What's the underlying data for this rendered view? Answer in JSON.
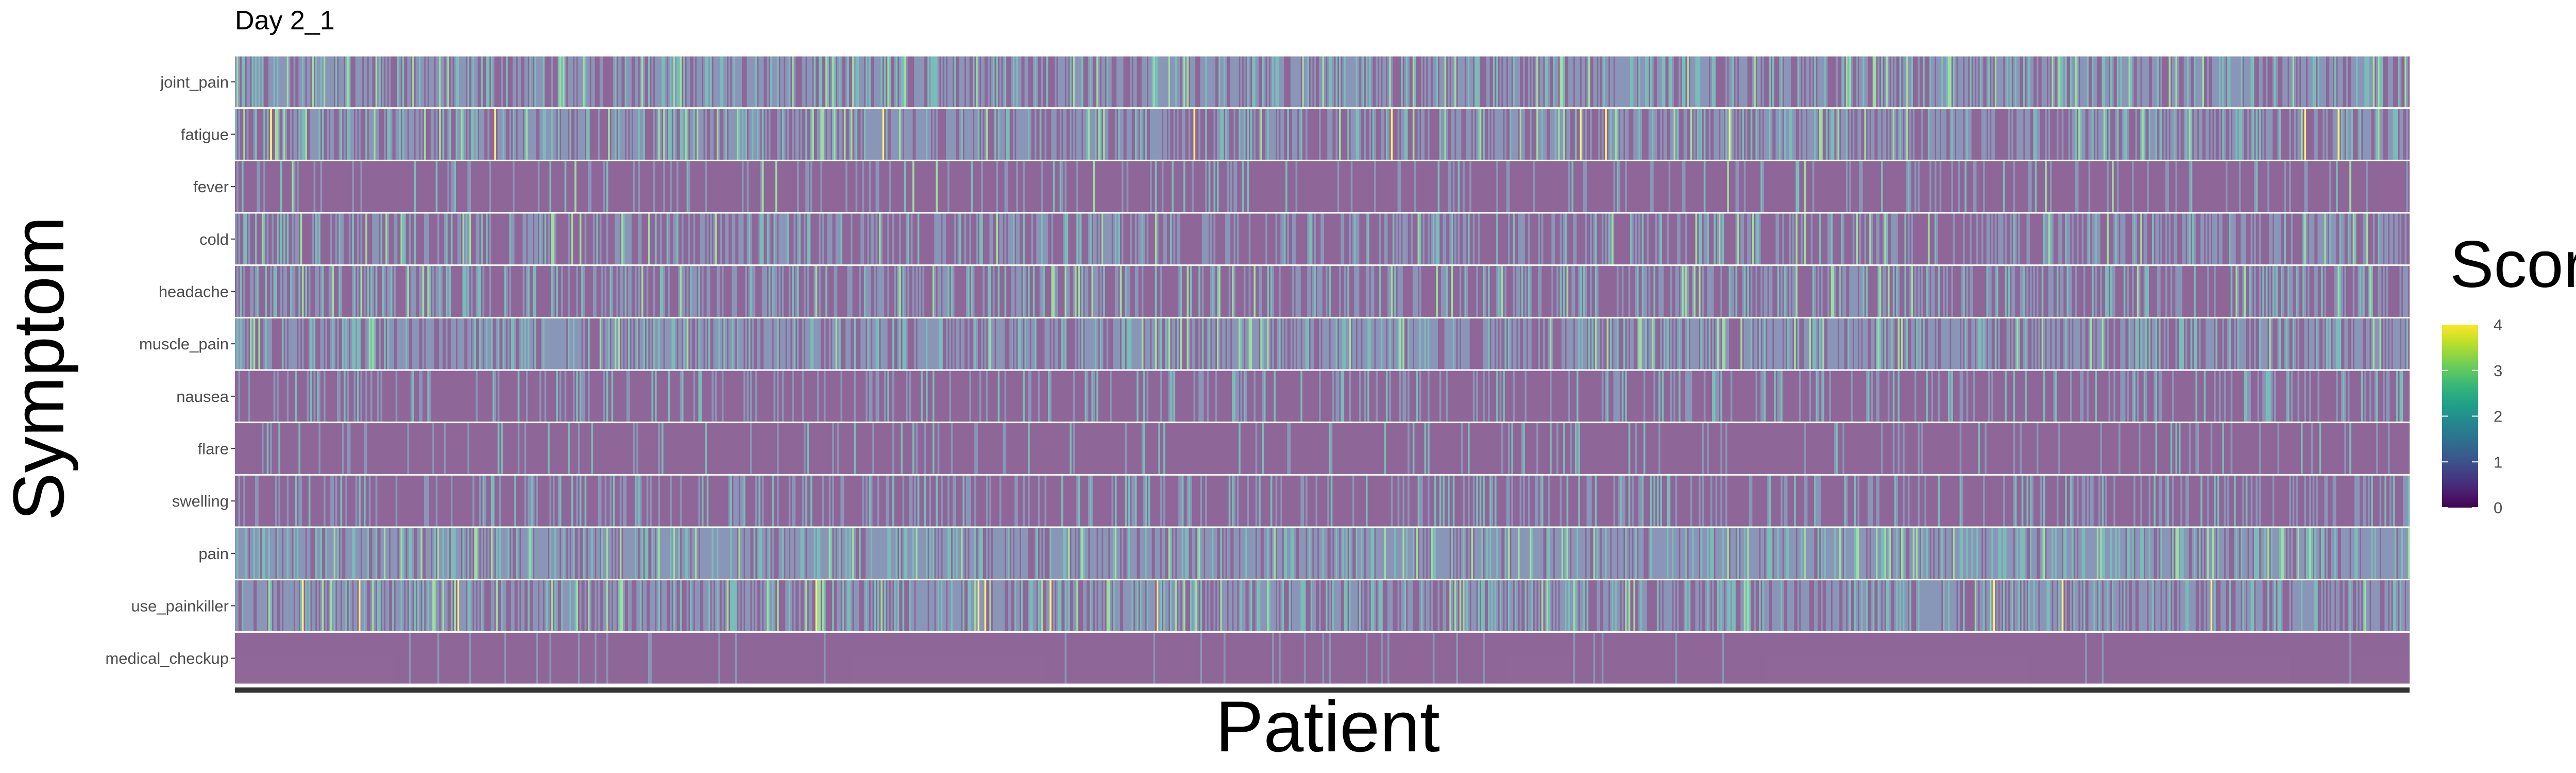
{
  "chart_data": {
    "type": "heatmap",
    "title": "Day 2_1",
    "xlabel": "Patient",
    "ylabel": "Symptom",
    "rows": [
      "joint_pain",
      "fatigue",
      "fever",
      "cold",
      "headache",
      "muscle_pain",
      "nausea",
      "flare",
      "swelling",
      "pain",
      "use_painkiller",
      "medical_checkup"
    ],
    "legend": {
      "title": "Score",
      "ticks": [
        0,
        1,
        2,
        3,
        4
      ],
      "range": [
        0,
        4
      ],
      "colormap": "viridis",
      "placement": "right"
    },
    "x_tick_labels": "none",
    "n_patients": "approx 1300",
    "row_score_profile": [
      {
        "row": "joint_pain",
        "mean_score": 0.9,
        "max_score": 3
      },
      {
        "row": "fatigue",
        "mean_score": 0.8,
        "max_score": 4
      },
      {
        "row": "fever",
        "mean_score": 0.2,
        "max_score": 4
      },
      {
        "row": "cold",
        "mean_score": 0.6,
        "max_score": 3
      },
      {
        "row": "headache",
        "mean_score": 0.6,
        "max_score": 3
      },
      {
        "row": "muscle_pain",
        "mean_score": 0.9,
        "max_score": 3
      },
      {
        "row": "nausea",
        "mean_score": 0.3,
        "max_score": 2
      },
      {
        "row": "flare",
        "mean_score": 0.15,
        "max_score": 2
      },
      {
        "row": "swelling",
        "mean_score": 0.4,
        "max_score": 2
      },
      {
        "row": "pain",
        "mean_score": 1.1,
        "max_score": 3
      },
      {
        "row": "use_painkiller",
        "mean_score": 0.9,
        "max_score": 4
      },
      {
        "row": "medical_checkup",
        "mean_score": 0.05,
        "max_score": 1
      }
    ],
    "cell_opacity": 0.6,
    "grid": false,
    "panel_background": "#ffffff",
    "row_separator_color": "#ffffff",
    "x_axis_bar_color": "#333333"
  }
}
